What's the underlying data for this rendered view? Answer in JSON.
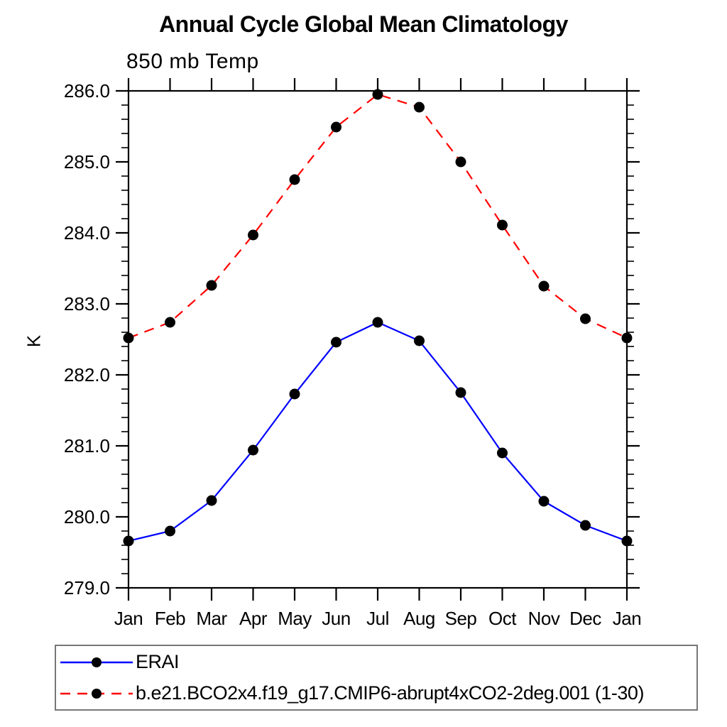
{
  "chart_data": {
    "type": "line",
    "title": "Annual Cycle Global Mean Climatology",
    "subtitle": "850 mb Temp",
    "ylabel": "K",
    "xlabel": "",
    "x_tick_labels": [
      "Jan",
      "Feb",
      "Mar",
      "Apr",
      "May",
      "Jun",
      "Jul",
      "Aug",
      "Sep",
      "Oct",
      "Nov",
      "Dec",
      "Jan"
    ],
    "ylim": [
      279.0,
      286.0
    ],
    "ytick_major_step": 1.0,
    "ytick_minor_step": 0.2,
    "y_tick_labels": [
      "279.0",
      "280.0",
      "281.0",
      "282.0",
      "283.0",
      "284.0",
      "285.0",
      "286.0"
    ],
    "grid": false,
    "legend_position": "bottom-left-box",
    "frame_color": "#000000",
    "series": [
      {
        "name": "ERAI",
        "color": "#0000ff",
        "line_style": "solid",
        "marker": "filled-circle",
        "marker_color": "#000000",
        "values": [
          279.66,
          279.8,
          280.23,
          280.94,
          281.73,
          282.46,
          282.74,
          282.48,
          281.75,
          280.9,
          280.22,
          279.88,
          279.66
        ]
      },
      {
        "name": "b.e21.BCO2x4.f19_g17.CMIP6-abrupt4xCO2-2deg.001 (1-30)",
        "color": "#ff0000",
        "line_style": "dashed",
        "marker": "filled-circle",
        "marker_color": "#000000",
        "values": [
          282.52,
          282.74,
          283.26,
          283.97,
          284.75,
          285.49,
          285.95,
          285.77,
          285.0,
          284.11,
          283.25,
          282.79,
          282.52
        ]
      }
    ]
  }
}
